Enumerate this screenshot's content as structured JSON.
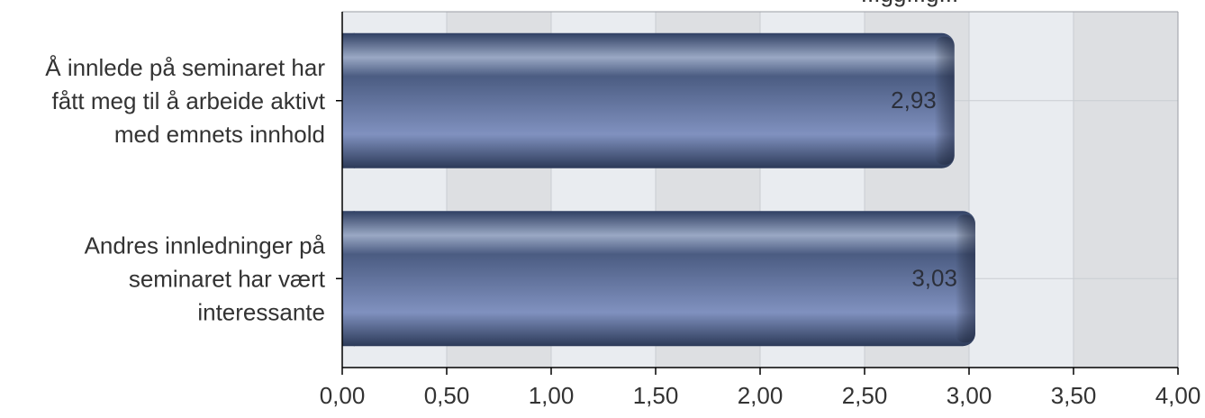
{
  "chart_data": {
    "type": "bar",
    "orientation": "horizontal",
    "title": "...gg...g...",
    "categories": [
      "Å innlede på seminaret har fått meg til å arbeide aktivt med emnets innhold",
      "Andres innledninger på seminaret har vært interessante"
    ],
    "category_lines": [
      [
        "Å innlede på seminaret har",
        "fått meg til å arbeide aktivt",
        "med emnets innhold"
      ],
      [
        "Andres innledninger på",
        "seminaret har vært",
        "interessante"
      ]
    ],
    "values": [
      2.93,
      3.03
    ],
    "value_labels": [
      "2,93",
      "3,03"
    ],
    "xlim": [
      0,
      4
    ],
    "ticks": [
      "0,00",
      "0,50",
      "1,00",
      "1,50",
      "2,00",
      "2,50",
      "3,00",
      "3,50",
      "4,00"
    ],
    "grid": true,
    "colors": {
      "bar_top": "#4a5a7c",
      "bar_mid": "#6f84b3",
      "bar_bottom": "#2c3b5c",
      "plot_bg_light": "#e9ecf0",
      "plot_bg_dark": "#dddfe2",
      "grid": "#c9cdd2",
      "axis": "#000000",
      "text": "#333333"
    }
  }
}
